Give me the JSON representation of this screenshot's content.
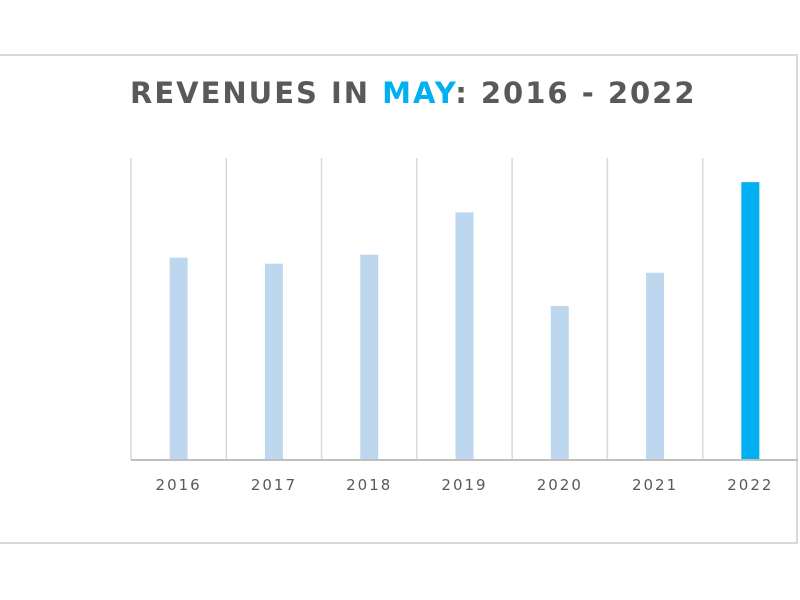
{
  "title": {
    "prefix": "REVENUES IN ",
    "highlight": "MAY",
    "suffix": ": 2016 - 2022"
  },
  "colors": {
    "bar": "#bdd7ee",
    "highlight_bar": "#00b0f0",
    "title_text": "#595959",
    "title_highlight": "#00b0f0",
    "grid": "#d9d9d9",
    "axis": "#bfbfbf",
    "tick_text": "#595959"
  },
  "chart_data": {
    "type": "bar",
    "title": "REVENUES IN MAY: 2016 - 2022",
    "xlabel": "",
    "ylabel": "",
    "categories": [
      "2016",
      "2017",
      "2018",
      "2019",
      "2020",
      "2021",
      "2022"
    ],
    "values": [
      67,
      65,
      68,
      82,
      51,
      62,
      92
    ],
    "highlight_category": "2022",
    "ylim": [
      0,
      100
    ],
    "y_axis_labels_shown": false,
    "vertical_gridlines": true,
    "legend": "none"
  }
}
